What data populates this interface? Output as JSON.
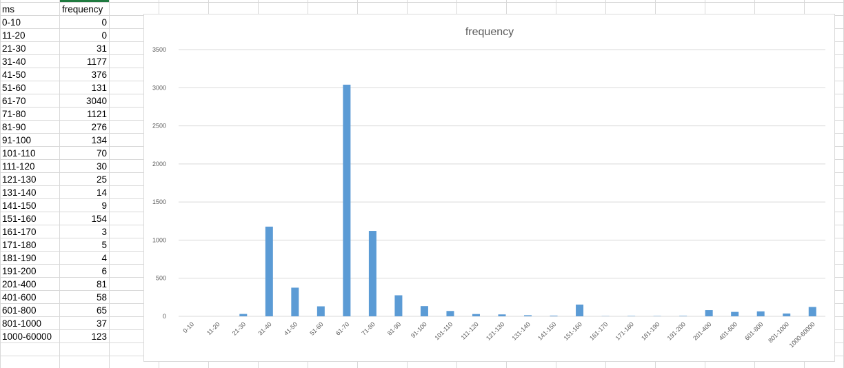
{
  "sheet": {
    "header": {
      "col_a": "ms",
      "col_b": "frequency"
    },
    "rows": [
      {
        "ms": "0-10",
        "frequency": "0"
      },
      {
        "ms": "11-20",
        "frequency": "0"
      },
      {
        "ms": "21-30",
        "frequency": "31"
      },
      {
        "ms": "31-40",
        "frequency": "1177"
      },
      {
        "ms": "41-50",
        "frequency": "376"
      },
      {
        "ms": "51-60",
        "frequency": "131"
      },
      {
        "ms": "61-70",
        "frequency": "3040"
      },
      {
        "ms": "71-80",
        "frequency": "1121"
      },
      {
        "ms": "81-90",
        "frequency": "276"
      },
      {
        "ms": "91-100",
        "frequency": "134"
      },
      {
        "ms": "101-110",
        "frequency": "70"
      },
      {
        "ms": "111-120",
        "frequency": "30"
      },
      {
        "ms": "121-130",
        "frequency": "25"
      },
      {
        "ms": "131-140",
        "frequency": "14"
      },
      {
        "ms": "141-150",
        "frequency": "9"
      },
      {
        "ms": "151-160",
        "frequency": "154"
      },
      {
        "ms": "161-170",
        "frequency": "3"
      },
      {
        "ms": "171-180",
        "frequency": "5"
      },
      {
        "ms": "181-190",
        "frequency": "4"
      },
      {
        "ms": "191-200",
        "frequency": "6"
      },
      {
        "ms": "201-400",
        "frequency": "81"
      },
      {
        "ms": "401-600",
        "frequency": "58"
      },
      {
        "ms": "601-800",
        "frequency": "65"
      },
      {
        "ms": "801-1000",
        "frequency": "37"
      },
      {
        "ms": "1000-60000",
        "frequency": "123"
      }
    ]
  },
  "chart_data": {
    "type": "bar",
    "title": "frequency",
    "xlabel": "",
    "ylabel": "",
    "categories": [
      "0-10",
      "11-20",
      "21-30",
      "31-40",
      "41-50",
      "51-60",
      "61-70",
      "71-80",
      "81-90",
      "91-100",
      "101-110",
      "111-120",
      "121-130",
      "131-140",
      "141-150",
      "151-160",
      "161-170",
      "171-180",
      "181-190",
      "191-200",
      "201-400",
      "401-600",
      "601-800",
      "801-1000",
      "1000-60000"
    ],
    "values": [
      0,
      0,
      31,
      1177,
      376,
      131,
      3040,
      1121,
      276,
      134,
      70,
      30,
      25,
      14,
      9,
      154,
      3,
      5,
      4,
      6,
      81,
      58,
      65,
      37,
      123
    ],
    "ylim": [
      0,
      3500
    ],
    "yticks": [
      0,
      500,
      1000,
      1500,
      2000,
      2500,
      3000,
      3500
    ],
    "grid": true,
    "legend": "none",
    "bar_color": "#5b9bd5"
  },
  "colors": {
    "bar": "#5b9bd5",
    "gridline": "#d9d9d9",
    "axis_text": "#595959",
    "selected_column_accent": "#1f7a3f"
  }
}
